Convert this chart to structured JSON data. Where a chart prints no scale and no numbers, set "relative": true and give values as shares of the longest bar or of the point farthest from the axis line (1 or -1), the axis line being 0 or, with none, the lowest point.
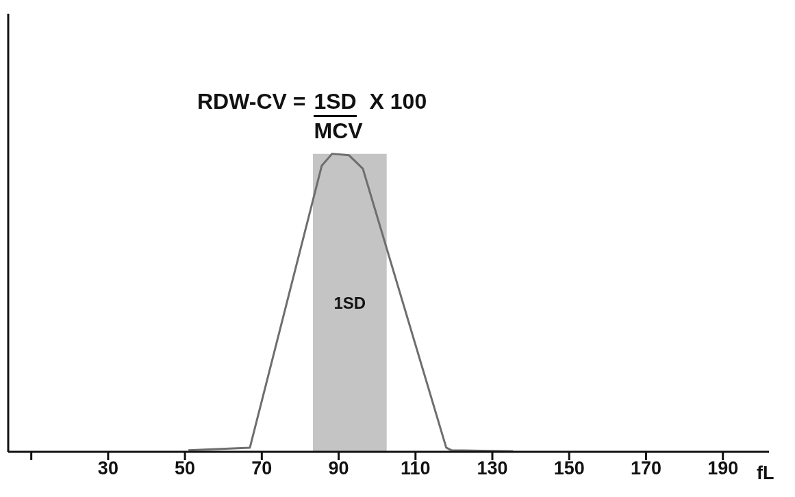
{
  "chart_data": {
    "type": "line",
    "relative": true,
    "x": [
      50.9,
      66.9,
      85.6,
      88.3,
      92.7,
      96.3,
      118.0,
      119.4,
      135.4
    ],
    "series": [
      {
        "color": "#6e6e6e",
        "values": [
          0.005,
          0.014,
          0.96,
          1,
          0.995,
          0.95,
          0.014,
          0.005,
          0.002
        ]
      }
    ],
    "xlim": [
      4,
      202
    ],
    "xticks": [
      {
        "value": 10,
        "label": null
      },
      30,
      50,
      70,
      90,
      110,
      130,
      150,
      170,
      190
    ],
    "xlabel": "fL",
    "bands": [
      {
        "axis": "x",
        "from": 83.3,
        "to": 102.5,
        "label": "1SD",
        "color": "#c4c4c4"
      }
    ],
    "annotations": [
      "RDW-CV =",
      "1SD",
      "X 100",
      "MCV"
    ],
    "grid": false,
    "marker": "none",
    "line_style": "solid"
  }
}
